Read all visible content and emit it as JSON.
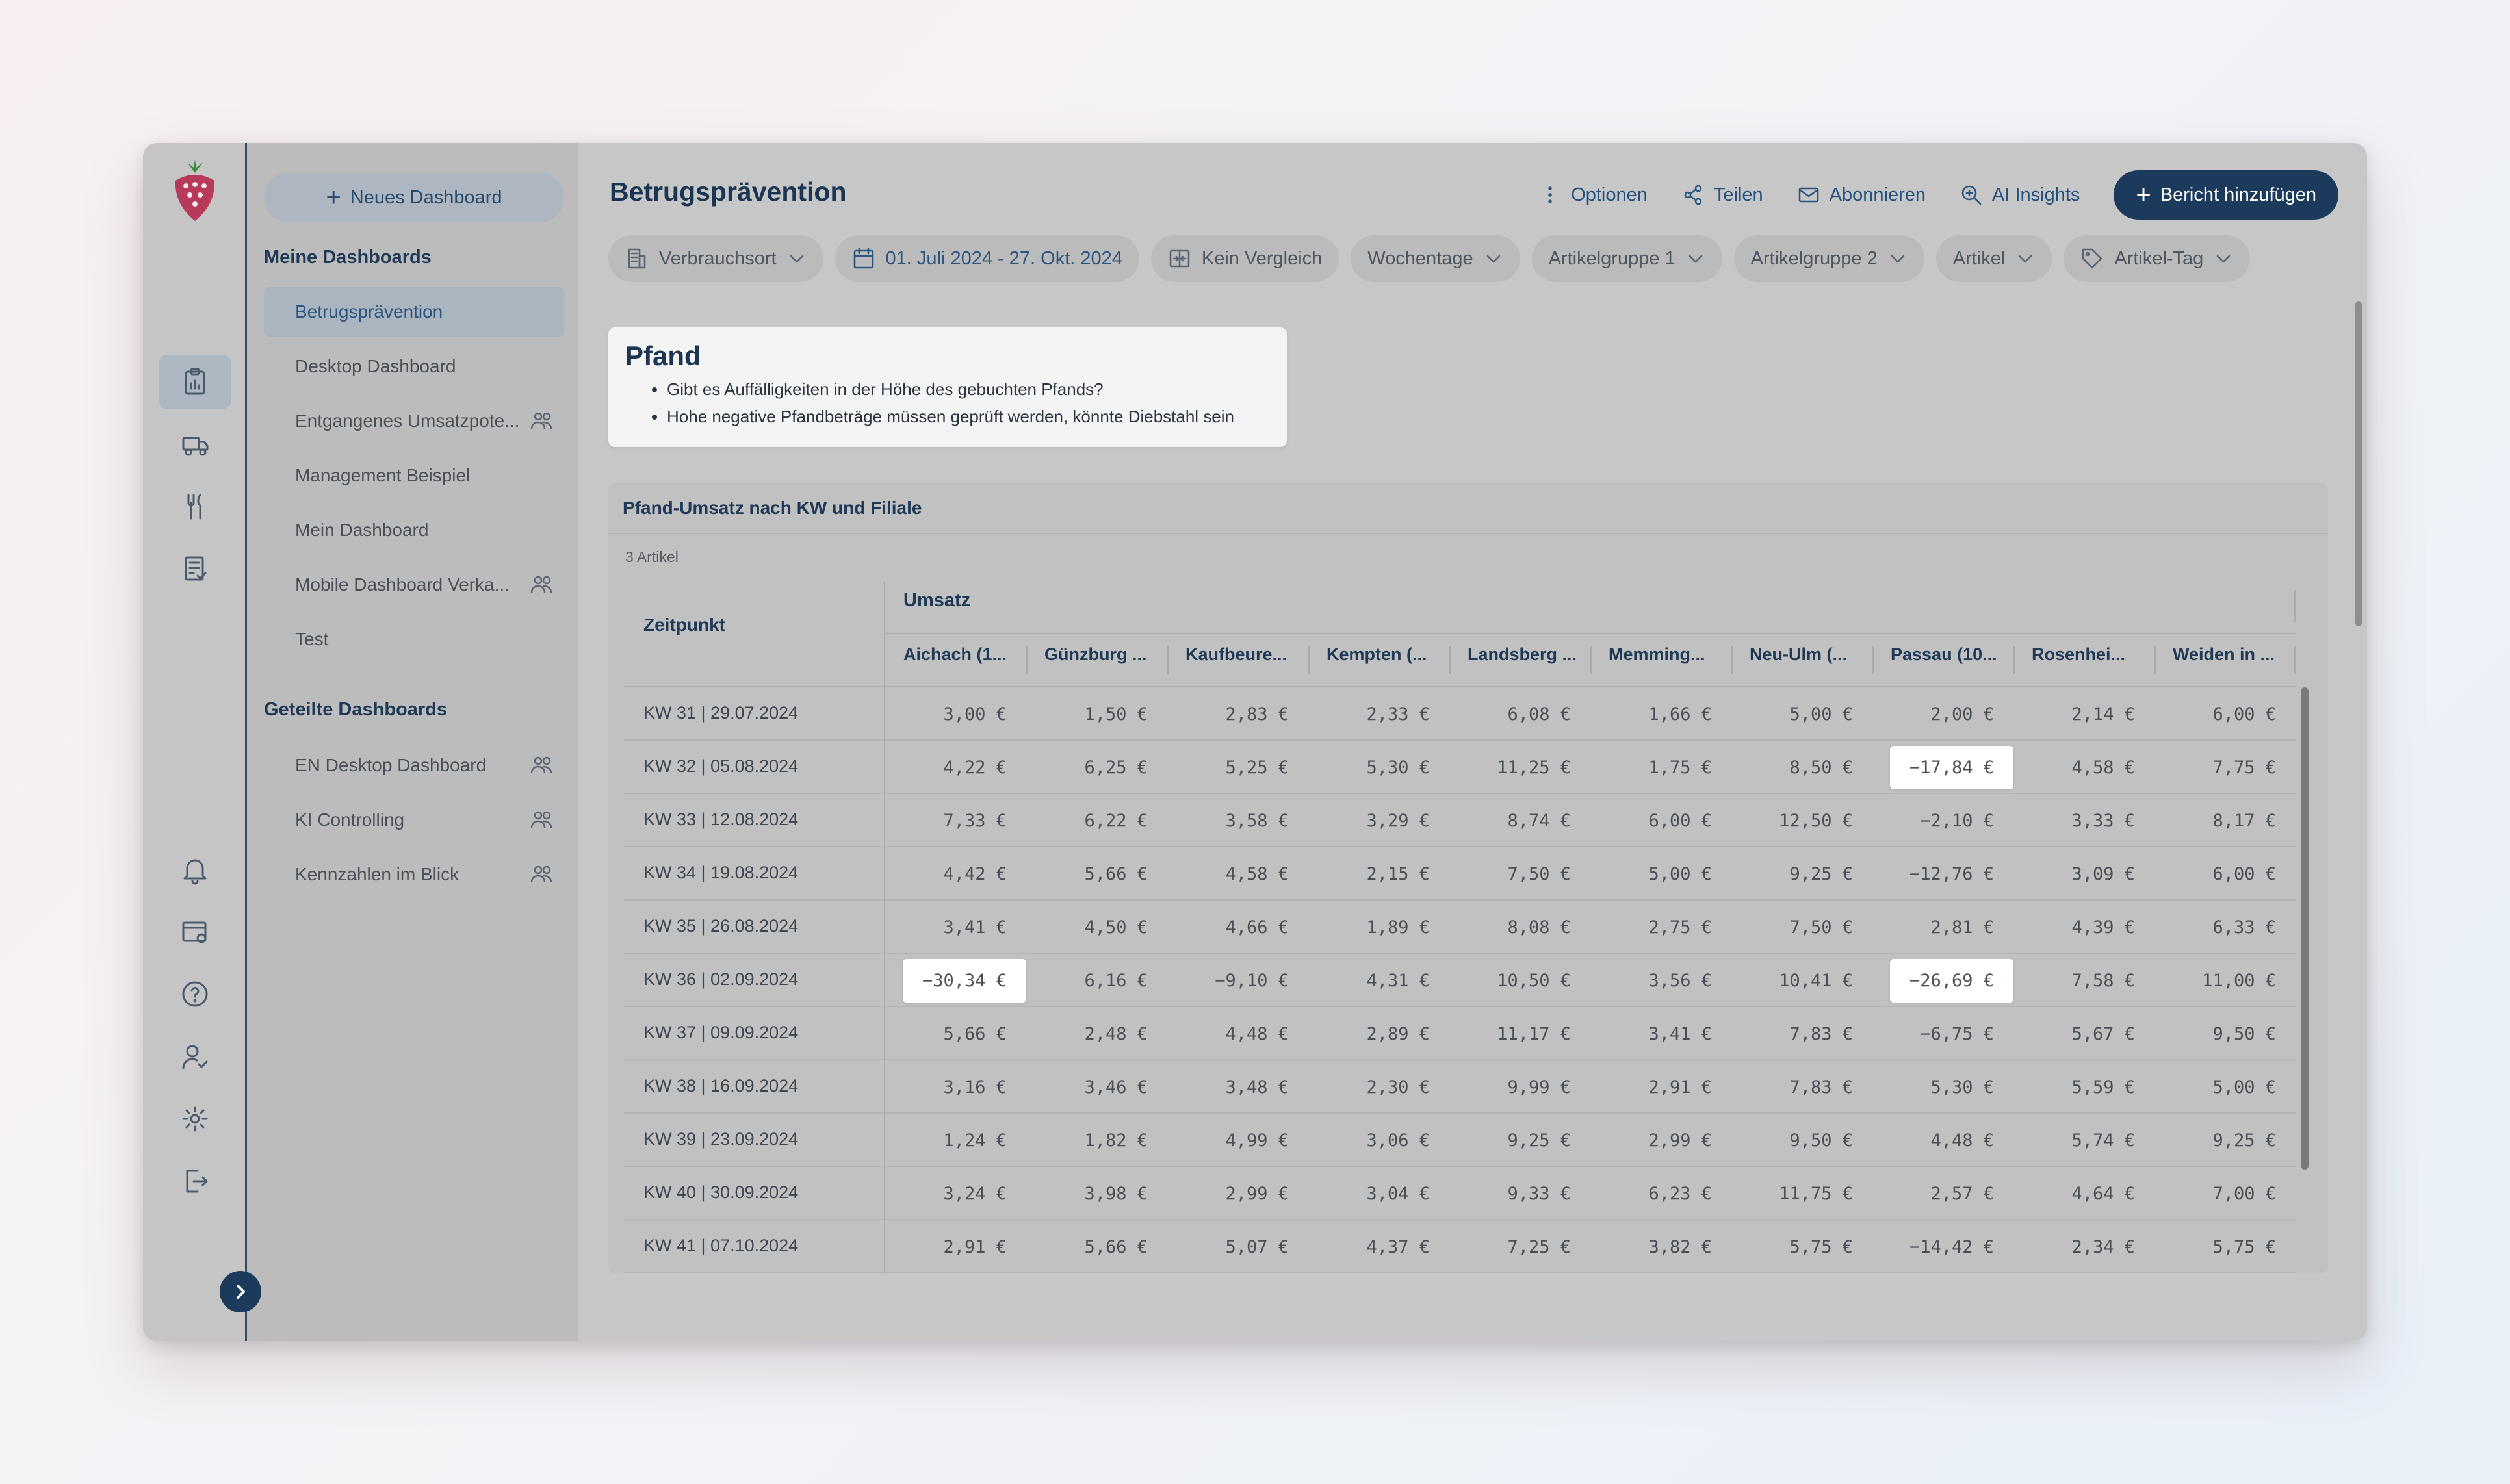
{
  "app": {
    "title": "Betrugsprävention",
    "brand_color": "#1b3a5c",
    "accent_color": "#2c5680"
  },
  "iconbar": {
    "items": [
      {
        "icon": "clipboard-chart-icon"
      },
      {
        "icon": "delivery-truck-icon"
      },
      {
        "icon": "fork-knife-icon"
      },
      {
        "icon": "checklist-icon"
      },
      {
        "icon": "bell-icon"
      },
      {
        "icon": "calendar-settings-icon"
      },
      {
        "icon": "help-circle-icon"
      },
      {
        "icon": "user-check-icon"
      },
      {
        "icon": "gear-icon"
      },
      {
        "icon": "logout-icon"
      }
    ]
  },
  "sidebar": {
    "new_dashboard": "Neues Dashboard",
    "my_title": "Meine Dashboards",
    "my_items": [
      {
        "label": "Betrugsprävention"
      },
      {
        "label": "Desktop Dashboard"
      },
      {
        "label": "Entgangenes Umsatzpote..."
      },
      {
        "label": "Management Beispiel"
      },
      {
        "label": "Mein Dashboard"
      },
      {
        "label": "Mobile Dashboard Verka..."
      },
      {
        "label": "Test"
      }
    ],
    "shared_title": "Geteilte Dashboards",
    "shared_items": [
      {
        "label": "EN Desktop Dashboard"
      },
      {
        "label": "KI Controlling"
      },
      {
        "label": "Kennzahlen im Blick"
      }
    ]
  },
  "header": {
    "title": "Betrugsprävention",
    "options": "Optionen",
    "share": "Teilen",
    "subscribe": "Abonnieren",
    "ai": "AI Insights",
    "add_report": "Bericht hinzufügen"
  },
  "filters": {
    "location": "Verbrauchsort",
    "date": "01. Juli 2024 - 27. Okt. 2024",
    "compare": "Kein Vergleich",
    "weekdays": "Wochentage",
    "group1": "Artikelgruppe 1",
    "group2": "Artikelgruppe 2",
    "article": "Artikel",
    "tag": "Artikel-Tag"
  },
  "note": {
    "title": "Pfand",
    "bullets": [
      "Gibt es Auffälligkeiten in der Höhe des gebuchten Pfands?",
      "Hohe negative Pfandbeträge müssen geprüft werden, könnte Diebstahl sein"
    ]
  },
  "report": {
    "title": "Pfand-Umsatz nach KW und Filiale",
    "count": "3 Artikel",
    "zeit_header": "Zeitpunkt",
    "group_header": "Umsatz",
    "columns": [
      "Aichach (1...",
      "Günzburg ...",
      "Kaufbeure...",
      "Kempten (...",
      "Landsberg ...",
      "Memming...",
      "Neu-Ulm (...",
      "Passau (10...",
      "Rosenhei...",
      "Weiden in ..."
    ],
    "rows": [
      {
        "zeit": "KW 31 | 29.07.2024",
        "values": [
          "3,00 €",
          "1,50 €",
          "2,83 €",
          "2,33 €",
          "6,08 €",
          "1,66 €",
          "5,00 €",
          "2,00 €",
          "2,14 €",
          "6,00 €"
        ],
        "highlight": []
      },
      {
        "zeit": "KW 32 | 05.08.2024",
        "values": [
          "4,22 €",
          "6,25 €",
          "5,25 €",
          "5,30 €",
          "11,25 €",
          "1,75 €",
          "8,50 €",
          "−17,84 €",
          "4,58 €",
          "7,75 €"
        ],
        "highlight": [
          7
        ]
      },
      {
        "zeit": "KW 33 | 12.08.2024",
        "values": [
          "7,33 €",
          "6,22 €",
          "3,58 €",
          "3,29 €",
          "8,74 €",
          "6,00 €",
          "12,50 €",
          "−2,10 €",
          "3,33 €",
          "8,17 €"
        ],
        "highlight": []
      },
      {
        "zeit": "KW 34 | 19.08.2024",
        "values": [
          "4,42 €",
          "5,66 €",
          "4,58 €",
          "2,15 €",
          "7,50 €",
          "5,00 €",
          "9,25 €",
          "−12,76 €",
          "3,09 €",
          "6,00 €"
        ],
        "highlight": []
      },
      {
        "zeit": "KW 35 | 26.08.2024",
        "values": [
          "3,41 €",
          "4,50 €",
          "4,66 €",
          "1,89 €",
          "8,08 €",
          "2,75 €",
          "7,50 €",
          "2,81 €",
          "4,39 €",
          "6,33 €"
        ],
        "highlight": []
      },
      {
        "zeit": "KW 36 | 02.09.2024",
        "values": [
          "−30,34 €",
          "6,16 €",
          "−9,10 €",
          "4,31 €",
          "10,50 €",
          "3,56 €",
          "10,41 €",
          "−26,69 €",
          "7,58 €",
          "11,00 €"
        ],
        "highlight": [
          0,
          7
        ]
      },
      {
        "zeit": "KW 37 | 09.09.2024",
        "values": [
          "5,66 €",
          "2,48 €",
          "4,48 €",
          "2,89 €",
          "11,17 €",
          "3,41 €",
          "7,83 €",
          "−6,75 €",
          "5,67 €",
          "9,50 €"
        ],
        "highlight": []
      },
      {
        "zeit": "KW 38 | 16.09.2024",
        "values": [
          "3,16 €",
          "3,46 €",
          "3,48 €",
          "2,30 €",
          "9,99 €",
          "2,91 €",
          "7,83 €",
          "5,30 €",
          "5,59 €",
          "5,00 €"
        ],
        "highlight": []
      },
      {
        "zeit": "KW 39 | 23.09.2024",
        "values": [
          "1,24 €",
          "1,82 €",
          "4,99 €",
          "3,06 €",
          "9,25 €",
          "2,99 €",
          "9,50 €",
          "4,48 €",
          "5,74 €",
          "9,25 €"
        ],
        "highlight": []
      },
      {
        "zeit": "KW 40 | 30.09.2024",
        "values": [
          "3,24 €",
          "3,98 €",
          "2,99 €",
          "3,04 €",
          "9,33 €",
          "6,23 €",
          "11,75 €",
          "2,57 €",
          "4,64 €",
          "7,00 €"
        ],
        "highlight": []
      },
      {
        "zeit": "KW 41 | 07.10.2024",
        "values": [
          "2,91 €",
          "5,66 €",
          "5,07 €",
          "4,37 €",
          "7,25 €",
          "3,82 €",
          "5,75 €",
          "−14,42 €",
          "2,34 €",
          "5,75 €"
        ],
        "highlight": []
      }
    ]
  }
}
